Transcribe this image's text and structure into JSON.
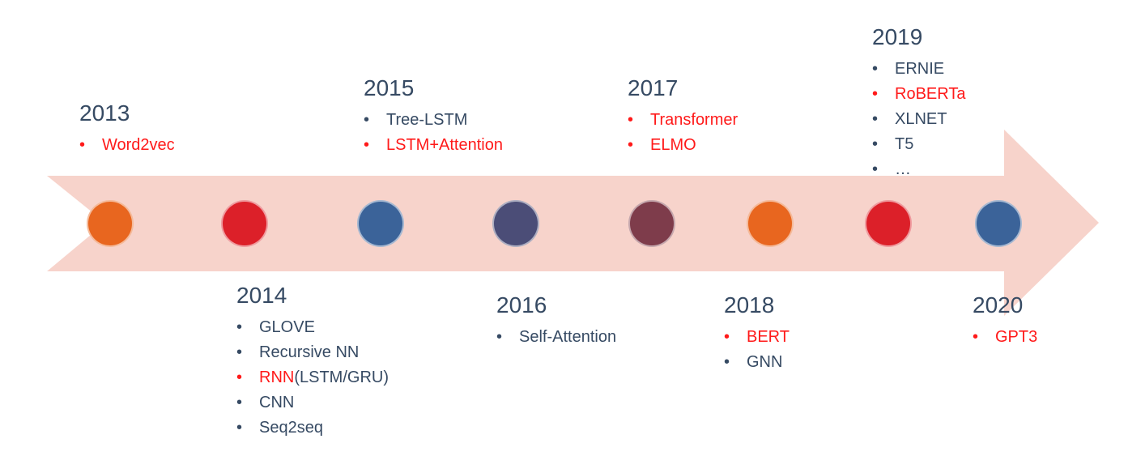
{
  "colors": {
    "arrow": "#f7d3cb",
    "text": "#364a63",
    "highlight": "#ff1a1a"
  },
  "dots": [
    {
      "color": "#e8661f"
    },
    {
      "color": "#dc2029"
    },
    {
      "color": "#3b6399"
    },
    {
      "color": "#4b4d77"
    },
    {
      "color": "#7e3c4b"
    },
    {
      "color": "#e8661f"
    },
    {
      "color": "#dc2029"
    },
    {
      "color": "#3b6399"
    }
  ],
  "events": [
    {
      "year": "2013",
      "items": [
        {
          "segments": [
            {
              "text": "Word2vec",
              "red": true
            }
          ],
          "bullet_red": true
        }
      ]
    },
    {
      "year": "2014",
      "items": [
        {
          "segments": [
            {
              "text": "GLOVE",
              "red": false
            }
          ],
          "bullet_red": false
        },
        {
          "segments": [
            {
              "text": "Recursive NN",
              "red": false
            }
          ],
          "bullet_red": false
        },
        {
          "segments": [
            {
              "text": "RNN",
              "red": true
            },
            {
              "text": "(LSTM/GRU)",
              "red": false
            }
          ],
          "bullet_red": true
        },
        {
          "segments": [
            {
              "text": "CNN",
              "red": false
            }
          ],
          "bullet_red": false
        },
        {
          "segments": [
            {
              "text": "Seq2seq",
              "red": false
            }
          ],
          "bullet_red": false
        }
      ]
    },
    {
      "year": "2015",
      "items": [
        {
          "segments": [
            {
              "text": "Tree-LSTM",
              "red": false
            }
          ],
          "bullet_red": false
        },
        {
          "segments": [
            {
              "text": "LSTM+Attention",
              "red": true
            }
          ],
          "bullet_red": true
        }
      ]
    },
    {
      "year": "2016",
      "items": [
        {
          "segments": [
            {
              "text": "Self-Attention",
              "red": false
            }
          ],
          "bullet_red": false
        }
      ]
    },
    {
      "year": "2017",
      "items": [
        {
          "segments": [
            {
              "text": "Transformer",
              "red": true
            }
          ],
          "bullet_red": true
        },
        {
          "segments": [
            {
              "text": "ELMO",
              "red": true
            }
          ],
          "bullet_red": true
        }
      ]
    },
    {
      "year": "2018",
      "items": [
        {
          "segments": [
            {
              "text": "BERT",
              "red": true
            }
          ],
          "bullet_red": true
        },
        {
          "segments": [
            {
              "text": "GNN",
              "red": false
            }
          ],
          "bullet_red": false
        }
      ]
    },
    {
      "year": "2019",
      "items": [
        {
          "segments": [
            {
              "text": "ERNIE",
              "red": false
            }
          ],
          "bullet_red": false
        },
        {
          "segments": [
            {
              "text": "RoBERTa",
              "red": true
            }
          ],
          "bullet_red": true
        },
        {
          "segments": [
            {
              "text": "XLNET",
              "red": false
            }
          ],
          "bullet_red": false
        },
        {
          "segments": [
            {
              "text": "T5",
              "red": false
            }
          ],
          "bullet_red": false
        },
        {
          "segments": [
            {
              "text": "…",
              "red": false
            }
          ],
          "bullet_red": false
        }
      ]
    },
    {
      "year": "2020",
      "items": [
        {
          "segments": [
            {
              "text": "GPT3",
              "red": true
            }
          ],
          "bullet_red": true
        }
      ]
    }
  ]
}
